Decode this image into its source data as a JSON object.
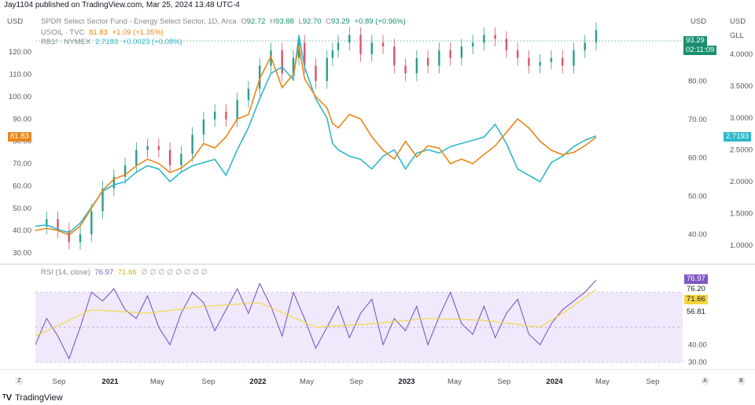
{
  "header": {
    "text": "Jay1104 published on TradingView.com, Mar 25, 2024 13:48 UTC-4"
  },
  "currency_left": "USD",
  "currency_right": "USD",
  "currency_far_right": "USD",
  "far_right_symbol": "GLL",
  "legend": {
    "main": {
      "title": "SPDR Select Sector Fund - Energy Select Sector, 1D, Arca",
      "o_label": "O",
      "o": "92.72",
      "h_label": "H",
      "h": "93.88",
      "l_label": "L",
      "l": "92.70",
      "c_label": "C",
      "c": "93.29",
      "change": "+0.89 (+0.96%)"
    },
    "usoil": {
      "title": "USOIL · TVC",
      "value": "81.83",
      "change": "+1.09 (+1.35%)"
    },
    "rb1": {
      "title": "RB1! · NYMEX",
      "value": "2.7193",
      "change": "+0.0023 (+0.08%)"
    },
    "rsi": {
      "title": "RSI (14, close)",
      "value": "76.97",
      "ma": "71.66",
      "placeholders": "∅ ∅ ∅ ∅ ∅ ∅ ∅ ∅"
    }
  },
  "price_boxes": {
    "xle_price": "93.29",
    "xle_countdown": "02:11:09",
    "usoil": "81.83",
    "rb1": "2.7193",
    "rsi_value": "76.97",
    "rsi_upper": "76.20",
    "rsi_ma": "71.66",
    "rsi_lower": "56.81"
  },
  "colors": {
    "usoil": "#e8861a",
    "rb1": "#2eb8c9",
    "candle_up": "#2a9d8f",
    "candle_down": "#d9546a",
    "rsi": "#7e57c2",
    "rsi_ma": "#f5d63b",
    "rsi_band": "#efe9fb",
    "xle_box": "#1a8f6f"
  },
  "footer": {
    "brand": "TradingView"
  },
  "corner_buttons": {
    "left": "Z",
    "a": "A",
    "b": "B"
  },
  "chart_data": [
    {
      "type": "line",
      "panel": "price",
      "x_tick_labels": [
        "Sep",
        "2021",
        "May",
        "Sep",
        "2022",
        "May",
        "Sep",
        "2023",
        "May",
        "Sep",
        "2024",
        "May",
        "Sep"
      ],
      "left_axis": {
        "label": "USD",
        "ticks": [
          30,
          40,
          50,
          60,
          70,
          80,
          90,
          100,
          110,
          120
        ],
        "tick_labels": [
          "30.00",
          "40.00",
          "50.00",
          "60.00",
          "70.00",
          "80.00",
          "90.00",
          "100.00",
          "110.00",
          "120.00"
        ],
        "range": [
          27,
          125
        ]
      },
      "mid_axis": {
        "label": "USD",
        "ticks": [
          40,
          50,
          60,
          70,
          80
        ],
        "tick_labels": [
          "40.00",
          "50.00",
          "60.00",
          "70.00",
          "80.00"
        ]
      },
      "right_axis": {
        "label": "GLL",
        "ticks": [
          1.0,
          1.5,
          2.0,
          2.5,
          3.0,
          3.5,
          4.0
        ],
        "tick_labels": [
          "1.0000",
          "1.5000",
          "2.0000",
          "2.5000",
          "3.0000",
          "3.5000",
          "4.0000"
        ]
      },
      "series": [
        {
          "name": "USOIL · TVC",
          "axis": "left",
          "x": [
            0,
            0.02,
            0.04,
            0.06,
            0.08,
            0.1,
            0.12,
            0.14,
            0.16,
            0.18,
            0.2,
            0.22,
            0.24,
            0.26,
            0.28,
            0.3,
            0.32,
            0.34,
            0.36,
            0.38,
            0.4,
            0.42,
            0.44,
            0.46,
            0.47,
            0.48,
            0.5,
            0.52,
            0.53,
            0.54,
            0.56,
            0.58,
            0.6,
            0.62,
            0.64,
            0.66,
            0.68,
            0.7,
            0.72,
            0.74,
            0.76,
            0.78,
            0.8,
            0.82,
            0.84,
            0.86,
            0.88,
            0.9,
            0.92,
            0.94,
            0.96,
            0.98,
            1.0
          ],
          "values": [
            40,
            41,
            40,
            38,
            42,
            50,
            58,
            63,
            65,
            69,
            72,
            70,
            66,
            68,
            72,
            79,
            77,
            82,
            90,
            92,
            108,
            118,
            104,
            110,
            123,
            108,
            100,
            95,
            88,
            86,
            92,
            90,
            82,
            76,
            72,
            80,
            73,
            78,
            77,
            70,
            72,
            70,
            74,
            78,
            84,
            90,
            86,
            80,
            76,
            74,
            75,
            78,
            81.83
          ]
        },
        {
          "name": "RB1! · NYMEX",
          "axis": "right",
          "x": [
            0,
            0.02,
            0.04,
            0.06,
            0.08,
            0.1,
            0.12,
            0.14,
            0.16,
            0.18,
            0.2,
            0.22,
            0.24,
            0.26,
            0.28,
            0.3,
            0.32,
            0.34,
            0.36,
            0.38,
            0.4,
            0.42,
            0.44,
            0.46,
            0.47,
            0.48,
            0.5,
            0.52,
            0.53,
            0.54,
            0.56,
            0.58,
            0.6,
            0.62,
            0.64,
            0.66,
            0.68,
            0.7,
            0.72,
            0.74,
            0.76,
            0.78,
            0.8,
            0.82,
            0.84,
            0.86,
            0.88,
            0.9,
            0.92,
            0.94,
            0.96,
            0.98,
            1.0
          ],
          "values": [
            1.3,
            1.32,
            1.25,
            1.2,
            1.35,
            1.6,
            1.85,
            1.95,
            2.0,
            2.15,
            2.25,
            2.2,
            2.0,
            2.15,
            2.25,
            2.3,
            2.35,
            2.1,
            2.5,
            2.85,
            3.3,
            3.7,
            3.8,
            3.6,
            4.3,
            3.8,
            3.3,
            3.0,
            2.6,
            2.5,
            2.4,
            2.35,
            2.2,
            2.4,
            2.5,
            2.2,
            2.45,
            2.5,
            2.45,
            2.55,
            2.6,
            2.65,
            2.7,
            2.9,
            2.6,
            2.2,
            2.1,
            2.0,
            2.3,
            2.4,
            2.55,
            2.65,
            2.7193
          ]
        },
        {
          "name": "SPDR Select Sector Fund - Energy Select Sector",
          "axis": "mid",
          "style": "candles",
          "x": [
            0,
            0.02,
            0.04,
            0.06,
            0.08,
            0.1,
            0.12,
            0.14,
            0.16,
            0.18,
            0.2,
            0.22,
            0.24,
            0.26,
            0.28,
            0.3,
            0.32,
            0.34,
            0.36,
            0.38,
            0.4,
            0.42,
            0.44,
            0.46,
            0.47,
            0.48,
            0.5,
            0.52,
            0.53,
            0.54,
            0.56,
            0.58,
            0.6,
            0.62,
            0.64,
            0.66,
            0.68,
            0.7,
            0.72,
            0.74,
            0.76,
            0.78,
            0.8,
            0.82,
            0.84,
            0.86,
            0.88,
            0.9,
            0.92,
            0.94,
            0.96,
            0.98,
            1.0
          ],
          "values": [
            42,
            44,
            41,
            38,
            40,
            46,
            52,
            55,
            58,
            62,
            63,
            62,
            58,
            61,
            66,
            70,
            72,
            70,
            75,
            78,
            84,
            88,
            82,
            86,
            90,
            84,
            80,
            86,
            88,
            90,
            92,
            87,
            90,
            89,
            84,
            82,
            86,
            84,
            88,
            86,
            89,
            90,
            92,
            91,
            88,
            86,
            84,
            85,
            86,
            84,
            88,
            90,
            93.29
          ]
        }
      ]
    },
    {
      "type": "line",
      "panel": "rsi",
      "title": "RSI (14, close)",
      "ylim": [
        28,
        82
      ],
      "ticks": [
        30,
        40,
        56.81,
        71.66,
        76.2
      ],
      "tick_labels": [
        "30.00",
        "40.00"
      ],
      "bands": {
        "upper": 70,
        "middle": 50,
        "lower": 30
      },
      "series": [
        {
          "name": "RSI (14, close)",
          "x": [
            0,
            0.02,
            0.04,
            0.06,
            0.08,
            0.1,
            0.12,
            0.14,
            0.16,
            0.18,
            0.2,
            0.22,
            0.24,
            0.26,
            0.28,
            0.3,
            0.32,
            0.34,
            0.36,
            0.38,
            0.4,
            0.42,
            0.44,
            0.46,
            0.48,
            0.5,
            0.52,
            0.54,
            0.56,
            0.58,
            0.6,
            0.62,
            0.64,
            0.66,
            0.68,
            0.7,
            0.72,
            0.74,
            0.76,
            0.78,
            0.8,
            0.82,
            0.84,
            0.86,
            0.88,
            0.9,
            0.92,
            0.94,
            0.96,
            0.98,
            1.0
          ],
          "values": [
            40,
            55,
            45,
            32,
            50,
            70,
            65,
            72,
            60,
            55,
            68,
            50,
            40,
            58,
            70,
            64,
            48,
            60,
            72,
            58,
            75,
            62,
            45,
            70,
            55,
            38,
            50,
            62,
            44,
            58,
            66,
            40,
            55,
            48,
            62,
            40,
            56,
            70,
            52,
            46,
            62,
            44,
            58,
            66,
            46,
            40,
            52,
            60,
            65,
            70,
            76.97
          ]
        },
        {
          "name": "RSI MA",
          "x": [
            0,
            0.1,
            0.2,
            0.3,
            0.4,
            0.5,
            0.6,
            0.7,
            0.8,
            0.9,
            0.95,
            1.0
          ],
          "values": [
            45,
            60,
            58,
            62,
            64,
            50,
            52,
            55,
            54,
            50,
            60,
            71.66
          ]
        }
      ]
    }
  ]
}
